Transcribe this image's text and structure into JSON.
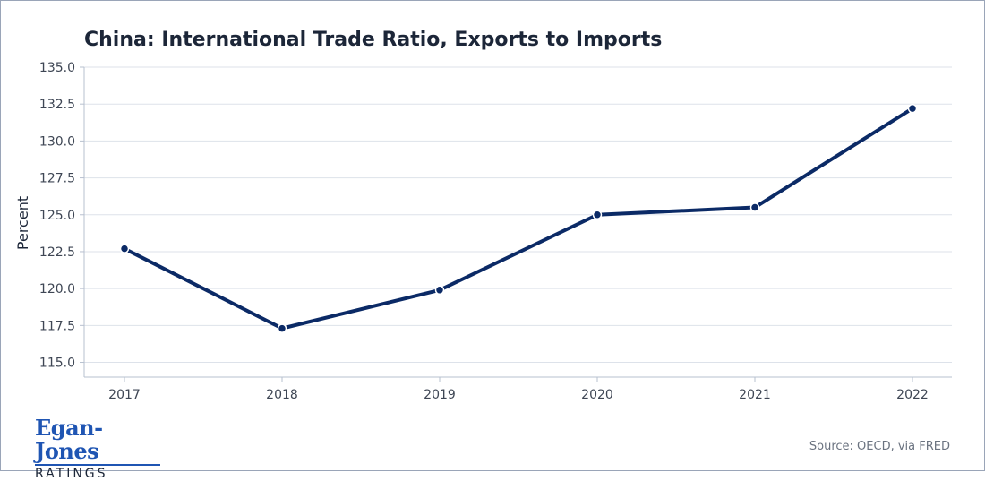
{
  "chart_data": {
    "type": "line",
    "title": "China: International Trade Ratio, Exports to Imports",
    "xlabel": "",
    "ylabel": "Percent",
    "x": [
      "2017",
      "2018",
      "2019",
      "2020",
      "2021",
      "2022"
    ],
    "series": [
      {
        "values": [
          122.7,
          117.3,
          119.9,
          125.0,
          125.5,
          132.2
        ]
      }
    ],
    "yticks": [
      "115.0",
      "117.5",
      "120.0",
      "122.5",
      "125.0",
      "127.5",
      "130.0",
      "132.5",
      "135.0"
    ],
    "ylim": [
      114.0,
      135.0
    ],
    "grid": "horizontal",
    "line_color": "#0b2a66"
  },
  "footer": {
    "logo_name": "Egan-Jones",
    "logo_sub": "RATINGS",
    "source": "Source: OECD, via FRED"
  }
}
